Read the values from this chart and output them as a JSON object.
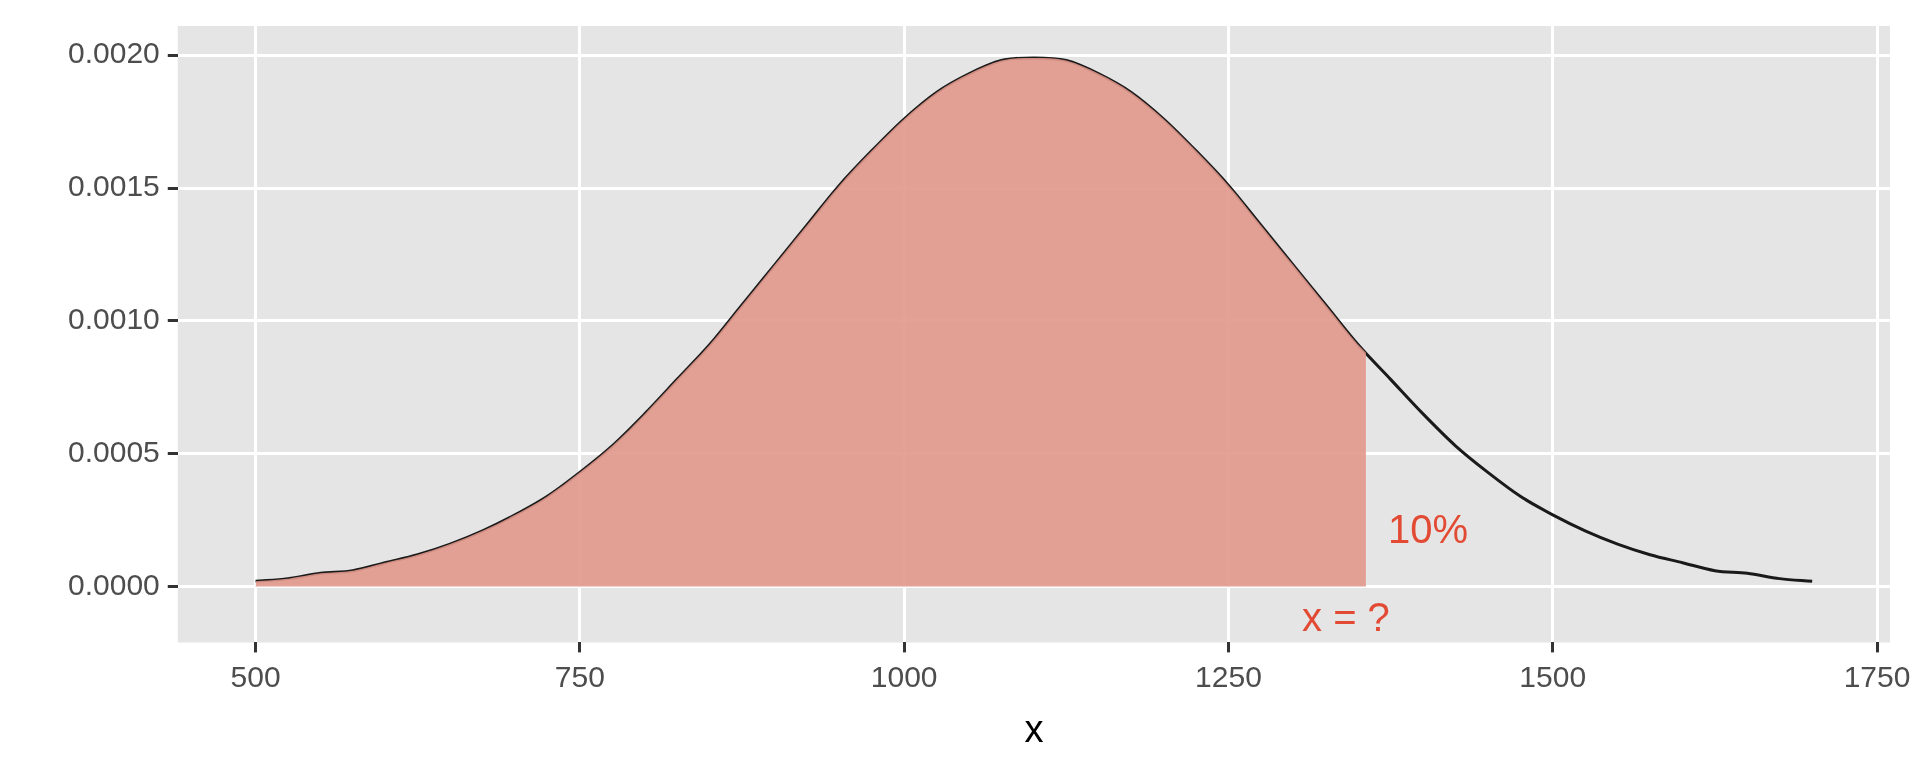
{
  "chart_data": {
    "type": "line",
    "xlabel": "x",
    "xlim": [
      440,
      1760
    ],
    "xticks": [
      500,
      750,
      1000,
      1250,
      1500,
      1750
    ],
    "ylim": [
      -0.00021,
      0.00211
    ],
    "yticks": [
      {
        "value": 0,
        "label": "0.0000"
      },
      {
        "value": 0.0005,
        "label": "0.0005"
      },
      {
        "value": 0.001,
        "label": "0.0010"
      },
      {
        "value": 0.0015,
        "label": "0.0015"
      },
      {
        "value": 0.002,
        "label": "0.0020"
      }
    ],
    "grid": true,
    "legend": false,
    "marker": "none",
    "series": [
      {
        "type": "area",
        "color": "#e1988c",
        "x": [
          500,
          525,
          550,
          575,
          600,
          625,
          650,
          675,
          700,
          725,
          750,
          775,
          800,
          825,
          850,
          875,
          900,
          925,
          950,
          975,
          1000,
          1025,
          1050,
          1075,
          1100,
          1125,
          1150,
          1175,
          1200,
          1225,
          1250,
          1275,
          1300,
          1325,
          1350,
          1356
        ],
        "values": [
          2e-05,
          3e-05,
          5e-05,
          6e-05,
          9e-05,
          0.00012,
          0.00016,
          0.00021,
          0.00027,
          0.00034,
          0.00043,
          0.00053,
          0.00065,
          0.00078,
          0.00091,
          0.00106,
          0.00121,
          0.00136,
          0.00151,
          0.00164,
          0.00176,
          0.00186,
          0.00193,
          0.00198,
          0.00199,
          0.00198,
          0.00193,
          0.00186,
          0.00176,
          0.00164,
          0.00151,
          0.00136,
          0.00121,
          0.00106,
          0.00091,
          0.00088
        ]
      },
      {
        "type": "line",
        "color": "#1a1a1a",
        "x": [
          500,
          525,
          550,
          575,
          600,
          625,
          650,
          675,
          700,
          725,
          750,
          775,
          800,
          825,
          850,
          875,
          900,
          925,
          950,
          975,
          1000,
          1025,
          1050,
          1075,
          1100,
          1125,
          1150,
          1175,
          1200,
          1225,
          1250,
          1275,
          1300,
          1325,
          1350,
          1375,
          1400,
          1425,
          1450,
          1475,
          1500,
          1525,
          1550,
          1575,
          1600,
          1625,
          1650,
          1675,
          1700
        ],
        "values": [
          2e-05,
          3e-05,
          5e-05,
          6e-05,
          9e-05,
          0.00012,
          0.00016,
          0.00021,
          0.00027,
          0.00034,
          0.00043,
          0.00053,
          0.00065,
          0.00078,
          0.00091,
          0.00106,
          0.00121,
          0.00136,
          0.00151,
          0.00164,
          0.00176,
          0.00186,
          0.00193,
          0.00198,
          0.00199,
          0.00198,
          0.00193,
          0.00186,
          0.00176,
          0.00164,
          0.00151,
          0.00136,
          0.00121,
          0.00106,
          0.00091,
          0.00078,
          0.00065,
          0.00053,
          0.00043,
          0.00034,
          0.00027,
          0.00021,
          0.00016,
          0.00012,
          9e-05,
          6e-05,
          5e-05,
          3e-05,
          2e-05
        ]
      }
    ],
    "annotations": [
      "10%",
      "x = ?"
    ]
  }
}
